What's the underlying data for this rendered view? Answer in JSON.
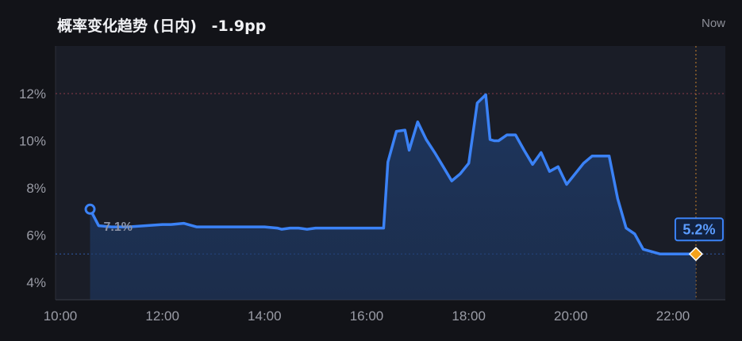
{
  "header": {
    "title": "概率变化趋势 (日内)",
    "delta": "-1.9pp",
    "now_label": "Now"
  },
  "colors": {
    "background": "#121318",
    "plot_background": "#1a1d27",
    "line": "#3b82f6",
    "area": "#1e3a68",
    "reference_line": "#8a3a4a",
    "now_line": "#c8832e",
    "end_marker": "#f5a21b",
    "tick_text": "#9a9ca6"
  },
  "chart_data": {
    "type": "area",
    "title": "概率变化趋势 (日内)",
    "xlabel": "",
    "ylabel": "",
    "x_ticks": [
      "10:00",
      "12:00",
      "14:00",
      "16:00",
      "18:00",
      "20:00",
      "22:00"
    ],
    "y_ticks": [
      "4%",
      "6%",
      "8%",
      "10%",
      "12%"
    ],
    "xlim": [
      "10:00",
      "23:05"
    ],
    "ylim": [
      3.3,
      14
    ],
    "grid": false,
    "legend": "none",
    "reference_line_y": 12,
    "now_time": "22:27",
    "start_label": "7.1%",
    "end_label": "5.2%",
    "series": [
      {
        "x": [
          "10:35",
          "10:45",
          "11:00",
          "11:20",
          "11:40",
          "12:00",
          "12:10",
          "12:25",
          "12:30",
          "12:35",
          "12:40",
          "13:00",
          "13:30",
          "14:00",
          "14:15",
          "14:20",
          "14:30",
          "14:40",
          "14:50",
          "15:00",
          "15:10",
          "15:20",
          "15:40",
          "16:00",
          "16:15",
          "16:20",
          "16:25",
          "16:35",
          "16:45",
          "16:50",
          "17:00",
          "17:10",
          "17:20",
          "17:30",
          "17:40",
          "17:50",
          "18:00",
          "18:10",
          "18:20",
          "18:25",
          "18:30",
          "18:35",
          "18:45",
          "18:55",
          "19:05",
          "19:15",
          "19:25",
          "19:35",
          "19:45",
          "19:55",
          "20:05",
          "20:15",
          "20:25",
          "20:35",
          "20:45",
          "20:55",
          "21:05",
          "21:15",
          "21:25",
          "21:35",
          "21:45",
          "21:55",
          "22:05",
          "22:15",
          "22:27"
        ],
        "values": [
          7.1,
          6.4,
          6.35,
          6.35,
          6.4,
          6.45,
          6.45,
          6.5,
          6.45,
          6.4,
          6.35,
          6.35,
          6.35,
          6.35,
          6.3,
          6.25,
          6.3,
          6.3,
          6.25,
          6.3,
          6.3,
          6.3,
          6.3,
          6.3,
          6.3,
          6.3,
          9.1,
          10.4,
          10.45,
          9.6,
          10.8,
          10.05,
          9.5,
          8.9,
          8.3,
          8.6,
          9.05,
          11.6,
          11.95,
          10.05,
          10.0,
          10.0,
          10.25,
          10.25,
          9.6,
          9.0,
          9.5,
          8.7,
          8.9,
          8.15,
          8.6,
          9.05,
          9.35,
          9.35,
          9.35,
          7.55,
          6.3,
          6.05,
          5.4,
          5.3,
          5.2,
          5.2,
          5.2,
          5.2,
          5.2
        ]
      }
    ]
  }
}
